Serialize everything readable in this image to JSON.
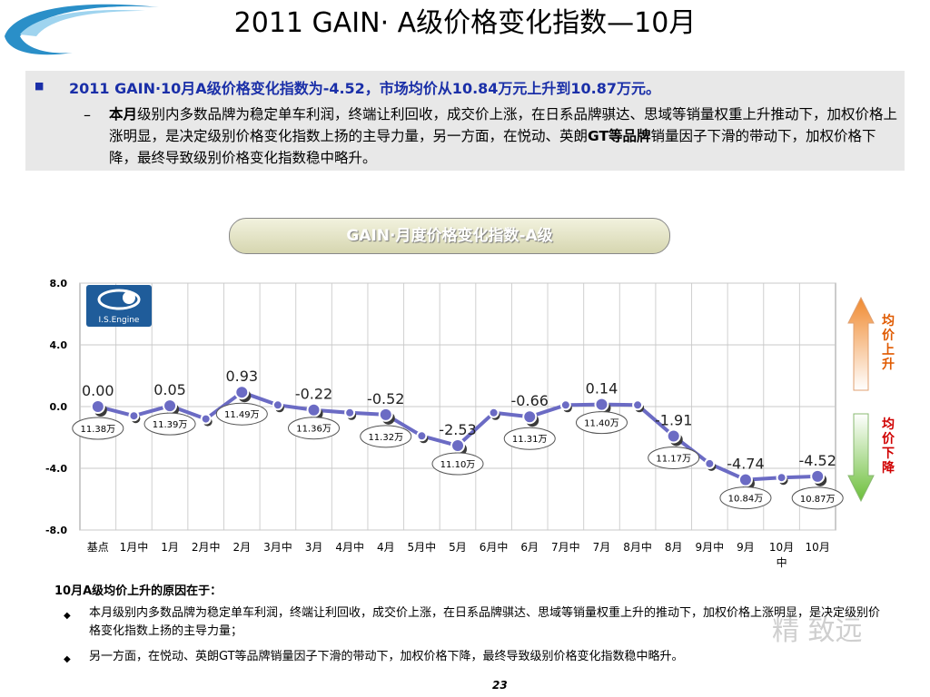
{
  "title": "2011 GAIN· A级价格变化指数—10月",
  "summary": {
    "headline": "2011 GAIN·10月A级价格变化指数为-4.52，市场均价从10.84万元上升到10.87万元。",
    "detail_lead": "本月",
    "detail_part1": "级别内多数品牌为稳定单车利润，终端让利回收，成交价上涨，在日系品牌骐达、思域等销量权重上升推动下，加权价格上涨明显，是决定级别价格变化指数上扬的主导力量，另一方面，在悦动、英朗",
    "detail_bold": "GT等品牌",
    "detail_part2": "销量因子下滑的带动下，加权价格下降，最终导致级别价格变化指数稳中略升。"
  },
  "chart_title": "GAIN·月度价格变化指数-A级",
  "logo_text": "I.S.Engine",
  "chart_data": {
    "type": "line",
    "title": "GAIN·月度价格变化指数-A级",
    "categories": [
      "基点",
      "1月中",
      "1月",
      "2月中",
      "2月",
      "3月中",
      "3月",
      "4月中",
      "4月",
      "5月中",
      "5月",
      "6月中",
      "6月",
      "7月中",
      "7月",
      "8月中",
      "8月",
      "9月中",
      "9月",
      "10月中",
      "10月"
    ],
    "values": [
      0.0,
      -0.6,
      0.05,
      -0.8,
      0.93,
      0.1,
      -0.22,
      -0.4,
      -0.52,
      -1.9,
      -2.53,
      -0.4,
      -0.66,
      0.1,
      0.14,
      0.1,
      -1.91,
      -3.7,
      -4.74,
      -4.6,
      -4.52
    ],
    "ylim": [
      -8,
      8
    ],
    "yticks": [
      "8.0",
      "4.0",
      "0.0",
      "-4.0",
      "-8.0"
    ],
    "grid": true,
    "line_color": "#6b6bc4",
    "value_labels": [
      {
        "index": 0,
        "text": "0.00"
      },
      {
        "index": 2,
        "text": "0.05"
      },
      {
        "index": 4,
        "text": "0.93"
      },
      {
        "index": 6,
        "text": "-0.22"
      },
      {
        "index": 8,
        "text": "-0.52"
      },
      {
        "index": 10,
        "text": "-2.53"
      },
      {
        "index": 12,
        "text": "-0.66"
      },
      {
        "index": 14,
        "text": "0.14"
      },
      {
        "index": 16,
        "text": "-1.91"
      },
      {
        "index": 18,
        "text": "-4.74"
      },
      {
        "index": 20,
        "text": "-4.52"
      }
    ],
    "price_callouts": [
      {
        "index": 0,
        "text": "11.38万"
      },
      {
        "index": 2,
        "text": "11.39万"
      },
      {
        "index": 4,
        "text": "11.49万"
      },
      {
        "index": 6,
        "text": "11.36万"
      },
      {
        "index": 8,
        "text": "11.32万"
      },
      {
        "index": 10,
        "text": "11.10万"
      },
      {
        "index": 12,
        "text": "11.31万"
      },
      {
        "index": 14,
        "text": "11.40万"
      },
      {
        "index": 16,
        "text": "11.17万"
      },
      {
        "index": 18,
        "text": "10.84万"
      },
      {
        "index": 20,
        "text": "10.87万"
      }
    ]
  },
  "arrows": {
    "up_label": "均价上升",
    "down_label": "均价下降",
    "up_color": "#f08a30",
    "down_color": "#6cbf3a"
  },
  "reasons": {
    "title": "10月A级均价上升的原因在于：",
    "items": [
      "本月级别内多数品牌为稳定单车利润，终端让利回收，成交价上涨，在日系品牌骐达、思域等销量权重上升的推动下，加权价格上涨明显，是决定级别价格变化指数上扬的主导力量；",
      "另一方面，在悦动、英朗GT等品牌销量因子下滑的带动下，加权价格下降，最终导致级别价格变化指数稳中略升。"
    ]
  },
  "watermark": "精 致远",
  "page_number": "23"
}
